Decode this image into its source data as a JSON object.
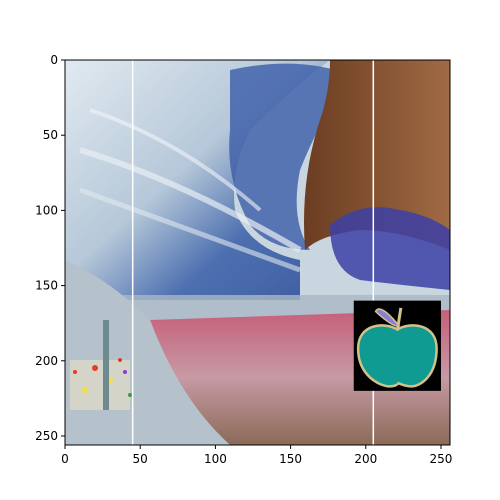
{
  "chart_data": {
    "type": "image",
    "title": "",
    "xlabel": "",
    "ylabel": "",
    "xlim": [
      0,
      256
    ],
    "ylim": [
      256,
      0
    ],
    "x_ticks": [
      0,
      50,
      100,
      150,
      200,
      250
    ],
    "y_ticks": [
      0,
      50,
      100,
      150,
      200,
      250
    ],
    "grid": false,
    "annotations": {
      "vertical_lines_x": [
        45,
        205
      ],
      "inset": {
        "icon": "apple-icon",
        "x_range": [
          192,
          250
        ],
        "y_range": [
          160,
          220
        ],
        "colors": {
          "background": "#000000",
          "apple_body": "#0f9a92",
          "apple_outline": "#d2c28a",
          "leaf": "#8a7fd8",
          "stem": "#111111"
        }
      }
    },
    "colors": {
      "sky_lower": "#3a5da8",
      "sky_light": "#c8d8e6",
      "rock_brown": "#7a4a2c",
      "rock_light": "#a8704a",
      "water_pink": "#c77a8e",
      "water_dark": "#8a5a4a",
      "foreground_grey": "#b9c6cf"
    }
  }
}
